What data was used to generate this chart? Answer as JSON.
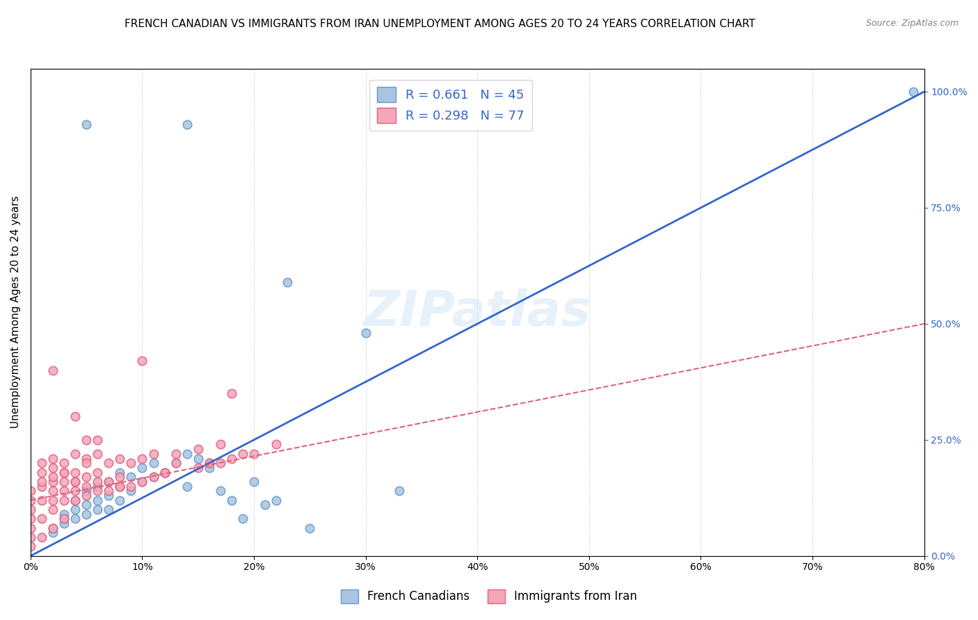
{
  "title": "FRENCH CANADIAN VS IMMIGRANTS FROM IRAN UNEMPLOYMENT AMONG AGES 20 TO 24 YEARS CORRELATION CHART",
  "source": "Source: ZipAtlas.com",
  "ylabel": "Unemployment Among Ages 20 to 24 years",
  "blue_label": "French Canadians",
  "pink_label": "Immigrants from Iran",
  "blue_R": 0.661,
  "blue_N": 45,
  "pink_R": 0.298,
  "pink_N": 77,
  "blue_color": "#a8c4e0",
  "pink_color": "#f4a7b9",
  "blue_edge": "#6699cc",
  "pink_edge": "#e06080",
  "blue_line_color": "#3366cc",
  "pink_line_color": "#e06080",
  "watermark": "ZIPatlas",
  "xmin": 0.0,
  "xmax": 0.8,
  "ymin": 0.0,
  "ymax": 1.05,
  "xticks": [
    0.0,
    0.1,
    0.2,
    0.3,
    0.4,
    0.5,
    0.6,
    0.7,
    0.8
  ],
  "yticks_right": [
    0.0,
    0.25,
    0.5,
    0.75,
    1.0
  ],
  "blue_scatter_x": [
    0.02,
    0.02,
    0.03,
    0.03,
    0.03,
    0.04,
    0.04,
    0.04,
    0.05,
    0.05,
    0.05,
    0.06,
    0.06,
    0.06,
    0.07,
    0.07,
    0.07,
    0.08,
    0.08,
    0.08,
    0.09,
    0.09,
    0.1,
    0.1,
    0.11,
    0.11,
    0.12,
    0.13,
    0.14,
    0.14,
    0.15,
    0.16,
    0.17,
    0.18,
    0.19,
    0.2,
    0.21,
    0.22,
    0.23,
    0.25,
    0.3,
    0.33,
    0.14,
    0.05,
    0.79
  ],
  "blue_scatter_y": [
    0.05,
    0.06,
    0.07,
    0.08,
    0.09,
    0.08,
    0.1,
    0.12,
    0.09,
    0.11,
    0.14,
    0.1,
    0.12,
    0.15,
    0.1,
    0.13,
    0.16,
    0.12,
    0.15,
    0.18,
    0.14,
    0.17,
    0.16,
    0.19,
    0.17,
    0.2,
    0.18,
    0.2,
    0.22,
    0.15,
    0.21,
    0.19,
    0.14,
    0.12,
    0.08,
    0.16,
    0.11,
    0.12,
    0.59,
    0.06,
    0.48,
    0.14,
    0.93,
    0.93,
    1.0
  ],
  "pink_scatter_x": [
    0.0,
    0.0,
    0.0,
    0.0,
    0.01,
    0.01,
    0.01,
    0.01,
    0.01,
    0.02,
    0.02,
    0.02,
    0.02,
    0.02,
    0.02,
    0.02,
    0.03,
    0.03,
    0.03,
    0.03,
    0.03,
    0.04,
    0.04,
    0.04,
    0.04,
    0.04,
    0.05,
    0.05,
    0.05,
    0.05,
    0.06,
    0.06,
    0.06,
    0.06,
    0.07,
    0.07,
    0.07,
    0.08,
    0.08,
    0.08,
    0.09,
    0.09,
    0.1,
    0.1,
    0.11,
    0.11,
    0.12,
    0.13,
    0.13,
    0.15,
    0.15,
    0.17,
    0.17,
    0.18,
    0.19,
    0.2,
    0.22,
    0.1,
    0.16,
    0.05,
    0.02,
    0.01,
    0.0,
    0.0,
    0.12,
    0.04,
    0.03,
    0.02,
    0.01,
    0.0,
    0.18,
    0.05,
    0.06,
    0.04,
    0.16,
    0.08,
    0.03
  ],
  "pink_scatter_y": [
    0.08,
    0.1,
    0.12,
    0.14,
    0.12,
    0.15,
    0.16,
    0.18,
    0.2,
    0.1,
    0.12,
    0.14,
    0.16,
    0.17,
    0.19,
    0.21,
    0.12,
    0.14,
    0.16,
    0.18,
    0.2,
    0.12,
    0.14,
    0.16,
    0.18,
    0.22,
    0.13,
    0.15,
    0.17,
    0.21,
    0.14,
    0.16,
    0.18,
    0.22,
    0.14,
    0.16,
    0.2,
    0.15,
    0.17,
    0.21,
    0.15,
    0.2,
    0.16,
    0.21,
    0.17,
    0.22,
    0.18,
    0.2,
    0.22,
    0.19,
    0.23,
    0.2,
    0.24,
    0.21,
    0.22,
    0.22,
    0.24,
    0.42,
    0.2,
    0.2,
    0.4,
    0.08,
    0.06,
    0.04,
    0.18,
    0.3,
    0.08,
    0.06,
    0.04,
    0.02,
    0.35,
    0.25,
    0.25,
    0.16,
    0.2,
    0.15,
    0.18
  ],
  "blue_line_x": [
    0.0,
    0.8
  ],
  "blue_line_y": [
    0.0,
    1.0
  ],
  "pink_line_x": [
    0.0,
    0.8
  ],
  "pink_line_y": [
    0.12,
    0.5
  ],
  "background_color": "#ffffff",
  "grid_color": "#cccccc",
  "title_fontsize": 11,
  "axis_label_fontsize": 11,
  "tick_fontsize": 10,
  "legend_fontsize": 13,
  "marker_size": 80
}
